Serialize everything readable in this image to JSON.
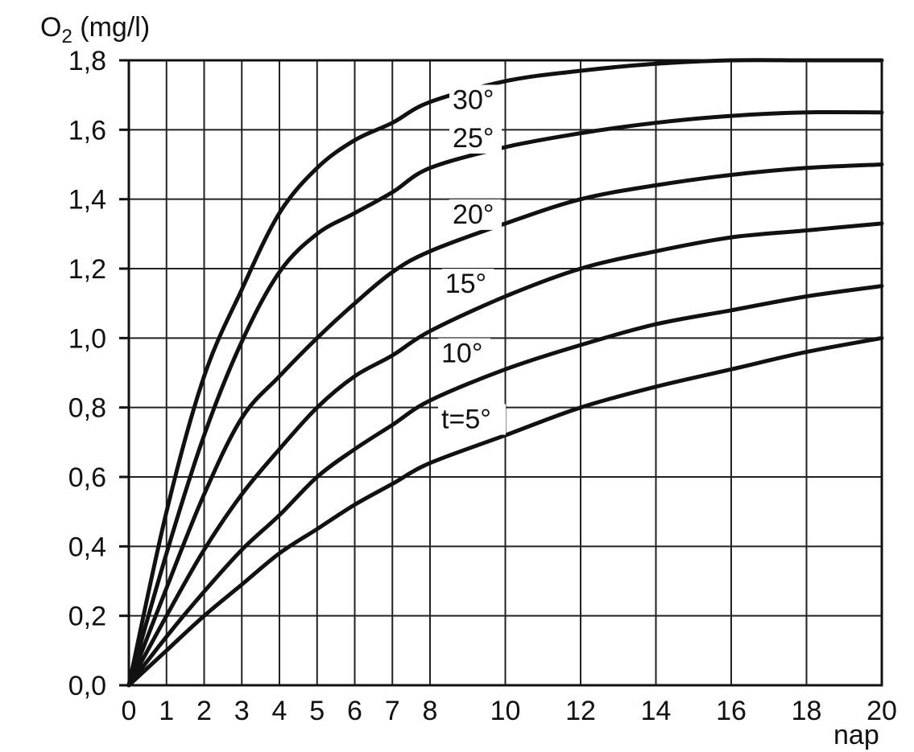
{
  "chart_data": {
    "type": "line",
    "title": "",
    "ylabel_main": "O",
    "ylabel_sub": "2",
    "ylabel_unit": " (mg/l)",
    "xlabel": "nap",
    "xlim": [
      0,
      20
    ],
    "ylim": [
      0,
      1.8
    ],
    "grid": true,
    "legend": "none",
    "x_ticks": [
      {
        "value": 0,
        "label": "0"
      },
      {
        "value": 1,
        "label": "1"
      },
      {
        "value": 2,
        "label": "2"
      },
      {
        "value": 3,
        "label": "3"
      },
      {
        "value": 4,
        "label": "4"
      },
      {
        "value": 5,
        "label": "5"
      },
      {
        "value": 6,
        "label": "6"
      },
      {
        "value": 7,
        "label": "7"
      },
      {
        "value": 8,
        "label": "8"
      },
      {
        "value": 10,
        "label": "10"
      },
      {
        "value": 12,
        "label": "12"
      },
      {
        "value": 14,
        "label": "14"
      },
      {
        "value": 16,
        "label": "16"
      },
      {
        "value": 18,
        "label": "18"
      },
      {
        "value": 20,
        "label": "20"
      }
    ],
    "y_ticks": [
      {
        "value": 0.0,
        "label": "0,0"
      },
      {
        "value": 0.2,
        "label": "0,2"
      },
      {
        "value": 0.4,
        "label": "0,4"
      },
      {
        "value": 0.6,
        "label": "0,6"
      },
      {
        "value": 0.8,
        "label": "0,8"
      },
      {
        "value": 1.0,
        "label": "1,0"
      },
      {
        "value": 1.2,
        "label": "1,2"
      },
      {
        "value": 1.4,
        "label": "1,4"
      },
      {
        "value": 1.6,
        "label": "1,6"
      },
      {
        "value": 1.8,
        "label": "1,8"
      }
    ],
    "series": [
      {
        "name": "30°",
        "label_at": [
          8.6,
          1.66
        ],
        "x": [
          0,
          1,
          2,
          3,
          4,
          5,
          6,
          7,
          8,
          10,
          12,
          14,
          16,
          18,
          20
        ],
        "y": [
          0,
          0.5,
          0.89,
          1.14,
          1.36,
          1.49,
          1.57,
          1.62,
          1.68,
          1.74,
          1.77,
          1.79,
          1.8,
          1.8,
          1.8
        ]
      },
      {
        "name": "25°",
        "label_at": [
          8.6,
          1.55
        ],
        "x": [
          0,
          1,
          2,
          3,
          4,
          5,
          6,
          7,
          8,
          10,
          12,
          14,
          16,
          18,
          20
        ],
        "y": [
          0,
          0.38,
          0.72,
          0.99,
          1.19,
          1.3,
          1.36,
          1.42,
          1.49,
          1.55,
          1.59,
          1.62,
          1.64,
          1.65,
          1.65
        ]
      },
      {
        "name": "20°",
        "label_at": [
          8.6,
          1.33
        ],
        "x": [
          0,
          1,
          2,
          3,
          4,
          5,
          6,
          7,
          8,
          10,
          12,
          14,
          16,
          18,
          20
        ],
        "y": [
          0,
          0.28,
          0.55,
          0.77,
          0.89,
          1.0,
          1.1,
          1.19,
          1.25,
          1.33,
          1.4,
          1.44,
          1.47,
          1.49,
          1.5
        ]
      },
      {
        "name": "15°",
        "label_at": [
          8.4,
          1.13
        ],
        "x": [
          0,
          1,
          2,
          3,
          4,
          5,
          6,
          7,
          8,
          10,
          12,
          14,
          16,
          18,
          20
        ],
        "y": [
          0,
          0.2,
          0.39,
          0.55,
          0.68,
          0.8,
          0.89,
          0.95,
          1.02,
          1.12,
          1.2,
          1.25,
          1.29,
          1.31,
          1.33
        ]
      },
      {
        "name": "10°",
        "label_at": [
          8.3,
          0.93
        ],
        "x": [
          0,
          1,
          2,
          3,
          4,
          5,
          6,
          7,
          8,
          10,
          12,
          14,
          16,
          18,
          20
        ],
        "y": [
          0,
          0.14,
          0.27,
          0.39,
          0.49,
          0.6,
          0.68,
          0.75,
          0.82,
          0.91,
          0.98,
          1.04,
          1.08,
          1.12,
          1.15
        ]
      },
      {
        "name": "t=5°",
        "label_at": [
          8.3,
          0.74
        ],
        "x": [
          0,
          1,
          2,
          3,
          4,
          5,
          6,
          7,
          8,
          10,
          12,
          14,
          16,
          18,
          20
        ],
        "y": [
          0,
          0.1,
          0.2,
          0.29,
          0.38,
          0.45,
          0.52,
          0.58,
          0.64,
          0.72,
          0.8,
          0.86,
          0.91,
          0.96,
          1.0
        ]
      }
    ]
  }
}
